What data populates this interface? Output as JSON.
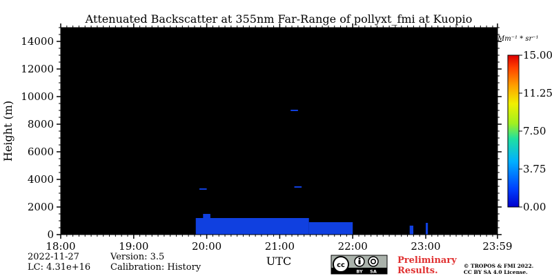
{
  "chart_data": {
    "type": "heatmap",
    "title": "Attenuated Backscatter at 355nm Far-Range of pollyxt_fmi at Kuopio",
    "xlabel": "UTC",
    "ylabel": "Height (m)",
    "x_ticks": [
      "18:00",
      "19:00",
      "20:00",
      "21:00",
      "22:00",
      "23:00",
      "23:59"
    ],
    "x_range_hours": [
      18.0,
      23.983
    ],
    "y_ticks": [
      0,
      2000,
      4000,
      6000,
      8000,
      10000,
      12000,
      14000
    ],
    "ylim": [
      0,
      15000
    ],
    "colorbar": {
      "unit": "Mm⁻¹ * sr⁻¹",
      "ticks": [
        "0.00",
        "3.75",
        "7.50",
        "11.25",
        "15.00"
      ],
      "range": [
        0,
        15
      ],
      "colormap": "jet"
    },
    "background_color": "#000000",
    "signal_color": "#1040e0",
    "signal_regions": [
      {
        "t_start": 19.85,
        "t_end": 21.4,
        "h_bottom": 0,
        "h_top": 1200,
        "value": 2.2
      },
      {
        "t_start": 21.4,
        "t_end": 22.0,
        "h_bottom": 0,
        "h_top": 900,
        "value": 2.0
      },
      {
        "t_start": 19.95,
        "t_end": 20.05,
        "h_bottom": 1200,
        "h_top": 1500,
        "value": 2.0
      },
      {
        "t_start": 20.95,
        "t_end": 21.05,
        "h_bottom": 1000,
        "h_top": 1100,
        "value": 2.0
      },
      {
        "t_start": 21.2,
        "t_end": 21.3,
        "h_bottom": 3400,
        "h_top": 3500,
        "value": 2.0
      },
      {
        "t_start": 21.15,
        "t_end": 21.25,
        "h_bottom": 8950,
        "h_top": 9050,
        "value": 2.0
      },
      {
        "t_start": 19.9,
        "t_end": 20.0,
        "h_bottom": 3250,
        "h_top": 3350,
        "value": 2.0
      },
      {
        "t_start": 22.78,
        "t_end": 22.83,
        "h_bottom": 0,
        "h_top": 650,
        "value": 2.0
      },
      {
        "t_start": 23.0,
        "t_end": 23.03,
        "h_bottom": 0,
        "h_top": 850,
        "value": 2.0
      }
    ]
  },
  "info": {
    "date": "2022-11-27",
    "lc": "LC: 4.31e+16",
    "version": "Version: 3.5",
    "calibration": "Calibration: History"
  },
  "license": {
    "badge_cc": "cc",
    "badge_by": "BY",
    "badge_sa": "SA",
    "preliminary_line1": "Preliminary",
    "preliminary_line2": "Results.",
    "copyright_line1": "© TROPOS & FMI 2022.",
    "copyright_line2": "CC BY SA 4.0 License."
  },
  "colors": {
    "preliminary": "#e03030"
  }
}
